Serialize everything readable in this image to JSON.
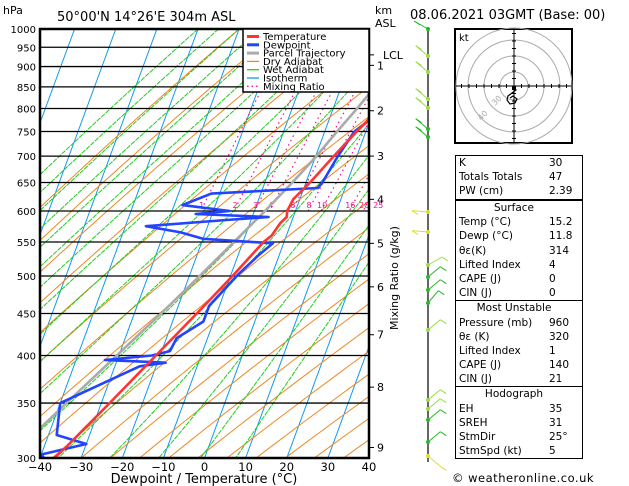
{
  "header": {
    "y_unit": "hPa",
    "location": "50°00'N  14°26'E  304m  ASL",
    "km_label": "km",
    "asl_label": "ASL",
    "datetime": "08.06.2021  03GMT  (Base: 00)"
  },
  "chart_data": {
    "type": "line",
    "title": "50°00'N 14°26'E 304m ASL",
    "xlabel": "Dewpoint / Temperature (°C)",
    "ylabel": "hPa",
    "y2label": "Mixing Ratio (g/kg)",
    "xlim": [
      -40,
      40
    ],
    "ylim": [
      1000,
      300
    ],
    "skew": true,
    "x_ticks": [
      "-40",
      "-30",
      "-20",
      "-10",
      "0",
      "10",
      "20",
      "30",
      "40"
    ],
    "y_ticks": [
      "300",
      "350",
      "400",
      "450",
      "500",
      "550",
      "600",
      "650",
      "700",
      "750",
      "800",
      "850",
      "900",
      "950",
      "1000"
    ],
    "km_ticks": [
      {
        "label": "9",
        "p": 309
      },
      {
        "label": "8",
        "p": 366
      },
      {
        "label": "7",
        "p": 424
      },
      {
        "label": "6",
        "p": 485
      },
      {
        "label": "5",
        "p": 548
      },
      {
        "label": "4",
        "p": 620
      },
      {
        "label": "3",
        "p": 700
      },
      {
        "label": "2",
        "p": 795
      },
      {
        "label": "1",
        "p": 903
      },
      {
        "label": "LCL",
        "p": 930
      }
    ],
    "mixing_ratio_labels": [
      "1",
      "2",
      "3",
      "4",
      "6",
      "8",
      "10",
      "16",
      "20",
      "25"
    ],
    "mixing_ratio_values": [
      1,
      2,
      3,
      4,
      6,
      8,
      10,
      16,
      20,
      25
    ],
    "legend": [
      "Temperature",
      "Dewpoint",
      "Parcel Trajectory",
      "Dry Adiabat",
      "Wet Adiabat",
      "Isotherm",
      "Mixing Ratio"
    ],
    "legend_position": "top-right",
    "colors": {
      "Temperature": "#ff3333",
      "Dewpoint": "#2244ff",
      "Parcel Trajectory": "#aaaaaa",
      "Dry Adiabat": "#ee8822",
      "Wet Adiabat": "#22cc22",
      "Isotherm": "#1199ee",
      "Mixing Ratio": "#ee1188"
    },
    "series": [
      {
        "name": "Temperature",
        "points": [
          [
            985,
            16.5
          ],
          [
            975,
            19.5
          ],
          [
            960,
            21.0
          ],
          [
            950,
            21.3
          ],
          [
            925,
            20.0
          ],
          [
            900,
            18.2
          ],
          [
            850,
            14.8
          ],
          [
            800,
            11.2
          ],
          [
            750,
            7.8
          ],
          [
            700,
            4.4
          ],
          [
            650,
            1.0
          ],
          [
            620,
            -1.6
          ],
          [
            600,
            -2.0
          ],
          [
            590,
            -1.6
          ],
          [
            580,
            -2.6
          ],
          [
            560,
            -3.6
          ],
          [
            550,
            -5.0
          ],
          [
            500,
            -9.5
          ],
          [
            450,
            -14.8
          ],
          [
            400,
            -21.0
          ],
          [
            350,
            -28.0
          ],
          [
            310,
            -34.5
          ],
          [
            300,
            -36.5
          ]
        ]
      },
      {
        "name": "Dewpoint",
        "points": [
          [
            985,
            12.8
          ],
          [
            970,
            12.0
          ],
          [
            960,
            12.8
          ],
          [
            950,
            11.5
          ],
          [
            925,
            11.2
          ],
          [
            900,
            10.8
          ],
          [
            850,
            10.5
          ],
          [
            800,
            10.0
          ],
          [
            770,
            9.4
          ],
          [
            750,
            7.2
          ],
          [
            700,
            5.4
          ],
          [
            650,
            4.0
          ],
          [
            640,
            3.4
          ],
          [
            630,
            -22.0
          ],
          [
            610,
            -28.0
          ],
          [
            600,
            -16.0
          ],
          [
            595,
            -24.0
          ],
          [
            590,
            -6.0
          ],
          [
            585,
            -16.0
          ],
          [
            575,
            -35.0
          ],
          [
            565,
            -26.0
          ],
          [
            555,
            -20.0
          ],
          [
            548,
            -2.6
          ],
          [
            530,
            -5.0
          ],
          [
            500,
            -8.5
          ],
          [
            460,
            -12.5
          ],
          [
            440,
            -12.5
          ],
          [
            420,
            -17.5
          ],
          [
            405,
            -18.0
          ],
          [
            400,
            -22.0
          ],
          [
            395,
            -33.0
          ],
          [
            392,
            -18.0
          ],
          [
            388,
            -24.0
          ],
          [
            350,
            -40.0
          ],
          [
            320,
            -38.0
          ],
          [
            312,
            -30.0
          ],
          [
            303,
            -40.0
          ],
          [
            300,
            -39.0
          ]
        ]
      },
      {
        "name": "Parcel Trajectory",
        "points": [
          [
            985,
            14.0
          ],
          [
            960,
            12.5
          ],
          [
            930,
            11.6
          ],
          [
            900,
            10.2
          ],
          [
            850,
            8.2
          ],
          [
            800,
            5.8
          ],
          [
            750,
            3.0
          ],
          [
            700,
            0.2
          ],
          [
            650,
            -3.3
          ],
          [
            600,
            -7.4
          ],
          [
            550,
            -12.2
          ],
          [
            500,
            -17.5
          ],
          [
            450,
            -23.5
          ],
          [
            400,
            -30.5
          ],
          [
            350,
            -38.5
          ],
          [
            300,
            -47.5
          ]
        ]
      }
    ]
  },
  "hodograph": {
    "unit_label": "kt",
    "ring_labels": [
      "40",
      "30"
    ]
  },
  "stats": {
    "top": [
      {
        "label": "K",
        "value": "30"
      },
      {
        "label": "Totals Totals",
        "value": "47"
      },
      {
        "label": "PW (cm)",
        "value": "2.39"
      }
    ],
    "surface": {
      "title": "Surface",
      "rows": [
        {
          "label": "Temp (°C)",
          "value": "15.2"
        },
        {
          "label": "Dewp (°C)",
          "value": "11.8"
        },
        {
          "label": "θε(K)",
          "value": "314"
        },
        {
          "label": "Lifted Index",
          "value": "4"
        },
        {
          "label": "CAPE (J)",
          "value": "0"
        },
        {
          "label": "CIN (J)",
          "value": "0"
        }
      ]
    },
    "most_unstable": {
      "title": "Most Unstable",
      "rows": [
        {
          "label": "Pressure (mb)",
          "value": "960"
        },
        {
          "label": "θε (K)",
          "value": "320"
        },
        {
          "label": "Lifted Index",
          "value": "1"
        },
        {
          "label": "CAPE (J)",
          "value": "140"
        },
        {
          "label": "CIN (J)",
          "value": "21"
        }
      ]
    },
    "hodograph": {
      "title": "Hodograph",
      "rows": [
        {
          "label": "EH",
          "value": "35"
        },
        {
          "label": "SREH",
          "value": "31"
        },
        {
          "label": "StmDir",
          "value": "25°"
        },
        {
          "label": "StmSpd (kt)",
          "value": "5"
        }
      ]
    }
  },
  "footer": {
    "copyright": "© weatheronline.co.uk"
  }
}
